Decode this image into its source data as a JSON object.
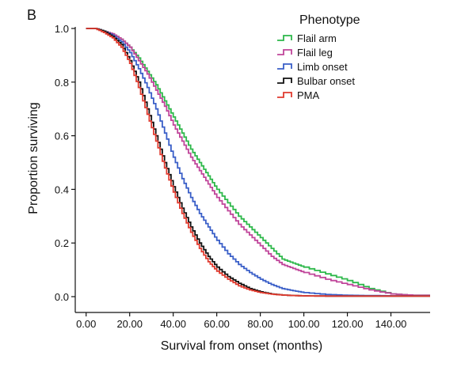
{
  "chart_data": {
    "type": "line",
    "panel_label": "B",
    "xlabel": "Survival from onset (months)",
    "ylabel": "Proportion surviving",
    "xlim": [
      -5,
      158
    ],
    "ylim": [
      0,
      1.0
    ],
    "x_ticks": [
      {
        "value": 0,
        "label": "0.00"
      },
      {
        "value": 20,
        "label": "20.00"
      },
      {
        "value": 40,
        "label": "40.00"
      },
      {
        "value": 60,
        "label": "60.00"
      },
      {
        "value": 80,
        "label": "80.00"
      },
      {
        "value": 100,
        "label": "100.00"
      },
      {
        "value": 120,
        "label": "120.00"
      },
      {
        "value": 140,
        "label": "140.00"
      }
    ],
    "y_ticks": [
      {
        "value": 0.0,
        "label": "0.0"
      },
      {
        "value": 0.2,
        "label": "0.2"
      },
      {
        "value": 0.4,
        "label": "0.4"
      },
      {
        "value": 0.6,
        "label": "0.6"
      },
      {
        "value": 0.8,
        "label": "0.8"
      },
      {
        "value": 1.0,
        "label": "1.0"
      }
    ],
    "grid": false,
    "legend_title": "Phenotype",
    "legend_position": "top-right",
    "series": [
      {
        "name": "Flail arm",
        "color": "#2db84a",
        "x": [
          0,
          4,
          8,
          12,
          16,
          20,
          24,
          28,
          32,
          36,
          40,
          44,
          48,
          52,
          56,
          60,
          65,
          70,
          75,
          80,
          85,
          90,
          95,
          100,
          110,
          120,
          130,
          140,
          150,
          158
        ],
        "y": [
          1.0,
          1.0,
          0.99,
          0.98,
          0.96,
          0.93,
          0.89,
          0.84,
          0.79,
          0.73,
          0.67,
          0.61,
          0.55,
          0.5,
          0.45,
          0.4,
          0.35,
          0.3,
          0.26,
          0.22,
          0.18,
          0.14,
          0.125,
          0.11,
          0.085,
          0.06,
          0.03,
          0.01,
          0.005,
          0.005
        ]
      },
      {
        "name": "Flail leg",
        "color": "#c0459a",
        "x": [
          0,
          4,
          8,
          12,
          16,
          20,
          24,
          28,
          32,
          36,
          40,
          44,
          48,
          52,
          56,
          60,
          65,
          70,
          75,
          80,
          85,
          90,
          95,
          100,
          110,
          120,
          130,
          140,
          150,
          158
        ],
        "y": [
          1.0,
          1.0,
          0.99,
          0.98,
          0.96,
          0.93,
          0.88,
          0.83,
          0.77,
          0.71,
          0.64,
          0.58,
          0.52,
          0.47,
          0.42,
          0.37,
          0.32,
          0.27,
          0.23,
          0.19,
          0.15,
          0.12,
          0.105,
          0.09,
          0.065,
          0.045,
          0.025,
          0.01,
          0.005,
          0.005
        ]
      },
      {
        "name": "Limb onset",
        "color": "#3a5fc8",
        "x": [
          0,
          4,
          8,
          12,
          16,
          20,
          24,
          28,
          32,
          36,
          40,
          44,
          48,
          52,
          56,
          60,
          65,
          70,
          75,
          80,
          85,
          90,
          95,
          100,
          110,
          120,
          130,
          140,
          150,
          158
        ],
        "y": [
          1.0,
          1.0,
          0.99,
          0.975,
          0.95,
          0.91,
          0.85,
          0.78,
          0.7,
          0.61,
          0.52,
          0.44,
          0.37,
          0.31,
          0.26,
          0.21,
          0.16,
          0.12,
          0.09,
          0.065,
          0.045,
          0.03,
          0.022,
          0.015,
          0.008,
          0.005,
          0.004,
          0.003,
          0.003,
          0.003
        ]
      },
      {
        "name": "Bulbar onset",
        "color": "#111111",
        "x": [
          0,
          4,
          8,
          12,
          16,
          20,
          24,
          28,
          32,
          36,
          40,
          44,
          48,
          52,
          56,
          60,
          65,
          70,
          75,
          80,
          85,
          90,
          95,
          100,
          110,
          120,
          130,
          140,
          150,
          158
        ],
        "y": [
          1.0,
          1.0,
          0.99,
          0.97,
          0.94,
          0.88,
          0.8,
          0.7,
          0.6,
          0.5,
          0.41,
          0.33,
          0.26,
          0.2,
          0.15,
          0.11,
          0.075,
          0.05,
          0.03,
          0.018,
          0.01,
          0.006,
          0.004,
          0.003,
          0.002,
          0.002,
          0.002,
          0.002,
          0.002,
          0.002
        ]
      },
      {
        "name": "PMA",
        "color": "#e03a2e",
        "x": [
          0,
          4,
          8,
          12,
          16,
          20,
          24,
          28,
          32,
          36,
          40,
          44,
          48,
          52,
          56,
          60,
          65,
          70,
          75,
          80,
          85,
          90,
          95,
          100,
          110,
          120,
          130,
          140,
          150,
          158
        ],
        "y": [
          1.0,
          1.0,
          0.985,
          0.965,
          0.93,
          0.87,
          0.78,
          0.68,
          0.58,
          0.48,
          0.39,
          0.31,
          0.24,
          0.18,
          0.13,
          0.095,
          0.065,
          0.04,
          0.025,
          0.015,
          0.009,
          0.006,
          0.004,
          0.003,
          0.002,
          0.002,
          0.002,
          0.002,
          0.002,
          0.002
        ]
      }
    ]
  }
}
